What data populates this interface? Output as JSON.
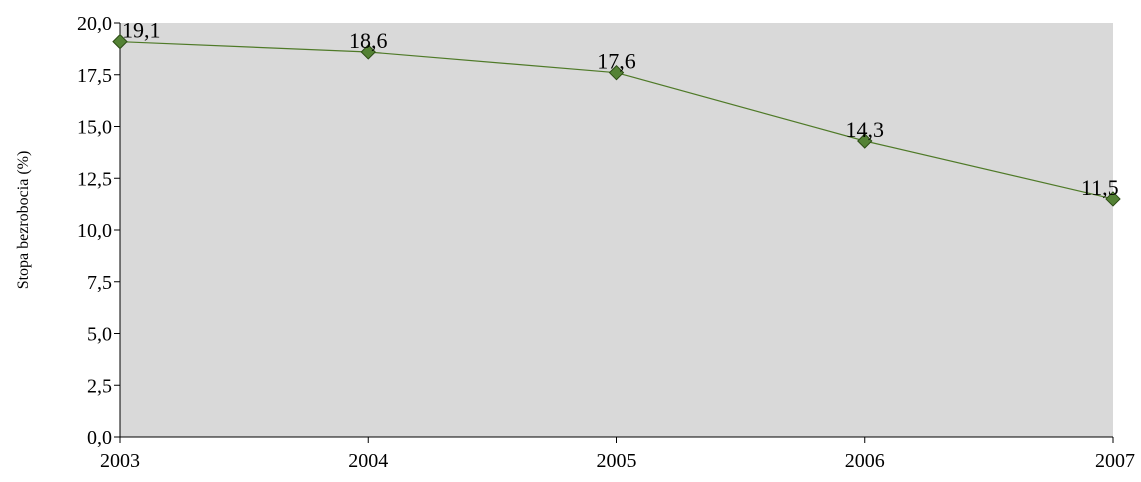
{
  "chart_data": {
    "type": "line",
    "title": "",
    "xlabel": "",
    "ylabel": "Stopa bezrobocia (%)",
    "categories": [
      "2003",
      "2004",
      "2005",
      "2006",
      "2007"
    ],
    "series": [
      {
        "values": [
          19.1,
          18.6,
          17.6,
          14.3,
          11.5
        ],
        "value_labels": [
          "19,1",
          "18,6",
          "17,6",
          "14,3",
          "11,5"
        ]
      }
    ],
    "ylim": [
      0,
      20
    ],
    "yticks": [
      0,
      2.5,
      5,
      7.5,
      10,
      12.5,
      15,
      17.5,
      20
    ],
    "ytick_labels": [
      "0,0",
      "2,5",
      "5,0",
      "7,5",
      "10,0",
      "12,5",
      "15,0",
      "17,5",
      "20,0"
    ],
    "grid": false,
    "legend": "none",
    "colors": {
      "plot_background": "#d9d9d9",
      "line": "#4f7a28",
      "marker_fill": "#548235",
      "marker_stroke": "#2b4a14",
      "axis": "#000000"
    }
  }
}
